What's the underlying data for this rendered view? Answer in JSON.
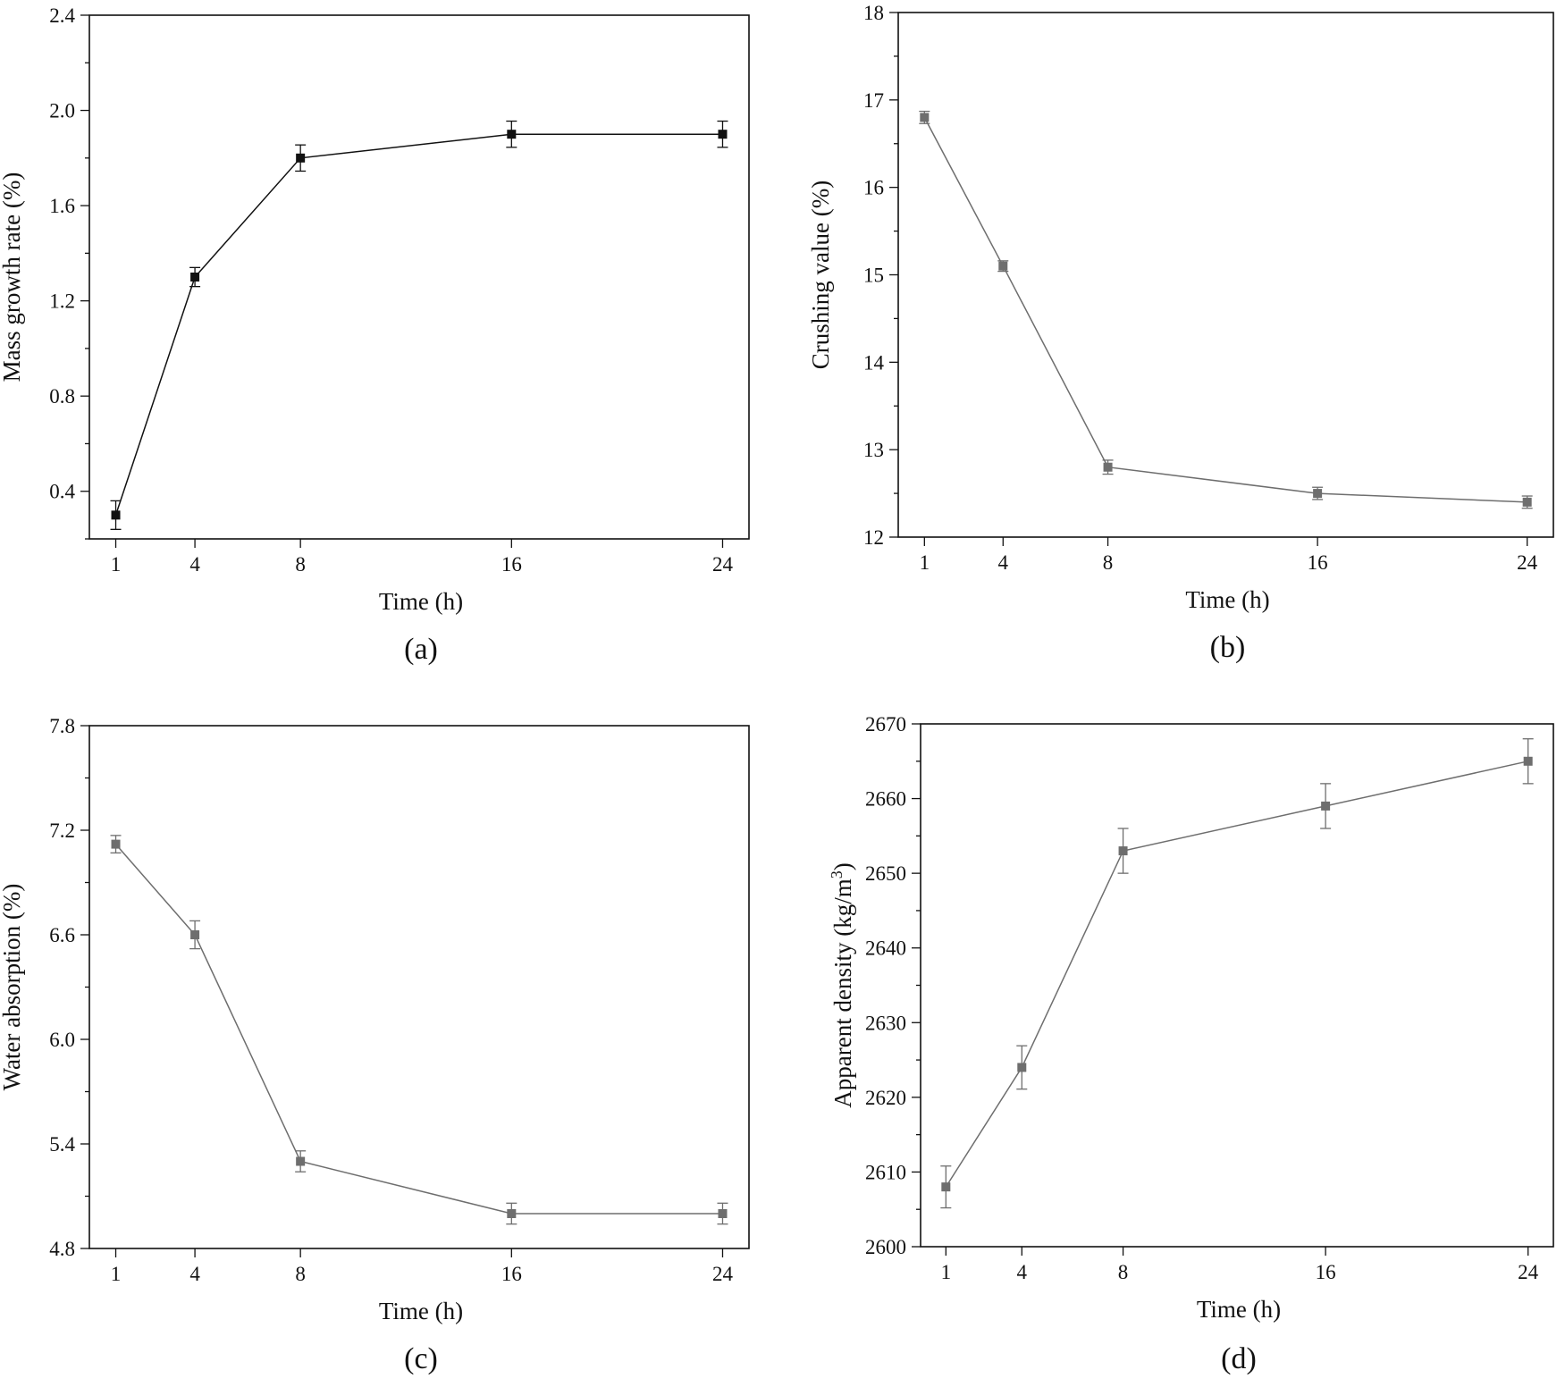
{
  "figure": {
    "colors": {
      "axis": "#111111",
      "series_a": "#111111",
      "series_gray": "#6e6e6e"
    }
  },
  "chart_data": [
    {
      "type": "line",
      "panel": "(a)",
      "title": "",
      "xlabel": "Time (h)",
      "ylabel": "Mass growth rate (%)",
      "x": [
        1,
        4,
        8,
        16,
        24
      ],
      "values": [
        0.3,
        1.3,
        1.8,
        1.9,
        1.9
      ],
      "errors": [
        0.06,
        0.04,
        0.055,
        0.055,
        0.055
      ],
      "xlim": [
        0,
        25
      ],
      "ylim": [
        0.2,
        2.4
      ],
      "xticks": [
        1,
        4,
        8,
        16,
        24
      ],
      "xtick_labels": [
        "1",
        "4",
        "8",
        "16",
        "24"
      ],
      "yticks": [
        0.4,
        0.8,
        1.2,
        1.6,
        2.0,
        2.4
      ],
      "ytick_labels": [
        "0.4",
        "0.8",
        "1.2",
        "1.6",
        "2.0",
        "2.4"
      ],
      "yminor": [
        0.2,
        0.6,
        1.0,
        1.4,
        1.8,
        2.2
      ],
      "color": "#111111",
      "grid": false,
      "legend": "none"
    },
    {
      "type": "line",
      "panel": "(b)",
      "title": "",
      "xlabel": "Time (h)",
      "ylabel": "Crushing value (%)",
      "x": [
        1,
        4,
        8,
        16,
        24
      ],
      "values": [
        16.8,
        15.1,
        12.8,
        12.5,
        12.4
      ],
      "errors": [
        0.07,
        0.06,
        0.08,
        0.07,
        0.07
      ],
      "xlim": [
        0,
        25
      ],
      "ylim": [
        12,
        18
      ],
      "xticks": [
        1,
        4,
        8,
        16,
        24
      ],
      "xtick_labels": [
        "1",
        "4",
        "8",
        "16",
        "24"
      ],
      "yticks": [
        12,
        13,
        14,
        15,
        16,
        17,
        18
      ],
      "ytick_labels": [
        "12",
        "13",
        "14",
        "15",
        "16",
        "17",
        "18"
      ],
      "yminor": [
        12.5,
        13.5,
        14.5,
        15.5,
        16.5,
        17.5
      ],
      "color": "#6e6e6e",
      "grid": false,
      "legend": "none"
    },
    {
      "type": "line",
      "panel": "(c)",
      "title": "",
      "xlabel": "Time (h)",
      "ylabel": "Water absorption (%)",
      "x": [
        1,
        4,
        8,
        16,
        24
      ],
      "values": [
        7.12,
        6.6,
        5.3,
        5.0,
        5.0
      ],
      "errors": [
        0.05,
        0.08,
        0.06,
        0.06,
        0.06
      ],
      "xlim": [
        0,
        25
      ],
      "ylim": [
        4.8,
        7.8
      ],
      "xticks": [
        1,
        4,
        8,
        16,
        24
      ],
      "xtick_labels": [
        "1",
        "4",
        "8",
        "16",
        "24"
      ],
      "yticks": [
        4.8,
        5.4,
        6.0,
        6.6,
        7.2,
        7.8
      ],
      "ytick_labels": [
        "4.8",
        "5.4",
        "6.0",
        "6.6",
        "7.2",
        "7.8"
      ],
      "yminor": [
        5.1,
        5.7,
        6.3,
        6.9,
        7.5
      ],
      "color": "#6e6e6e",
      "grid": false,
      "legend": "none"
    },
    {
      "type": "line",
      "panel": "(d)",
      "title": "",
      "xlabel": "Time (h)",
      "ylabel": "Apparent density (kg/m³)",
      "ylabel_main": "Apparent density (kg/m",
      "ylabel_sup": "3",
      "ylabel_end": ")",
      "x": [
        1,
        4,
        8,
        16,
        24
      ],
      "values": [
        2608,
        2624,
        2653,
        2659,
        2665
      ],
      "errors": [
        2.8,
        2.9,
        3.0,
        3.0,
        3.0
      ],
      "xlim": [
        0,
        25
      ],
      "ylim": [
        2600,
        2670
      ],
      "xticks": [
        1,
        4,
        8,
        16,
        24
      ],
      "xtick_labels": [
        "1",
        "4",
        "8",
        "16",
        "24"
      ],
      "yticks": [
        2600,
        2610,
        2620,
        2630,
        2640,
        2650,
        2660,
        2670
      ],
      "ytick_labels": [
        "2600",
        "2610",
        "2620",
        "2630",
        "2640",
        "2650",
        "2660",
        "2670"
      ],
      "yminor": [
        2605,
        2615,
        2625,
        2635,
        2645,
        2655,
        2665
      ],
      "color": "#6e6e6e",
      "grid": false,
      "legend": "none"
    }
  ]
}
